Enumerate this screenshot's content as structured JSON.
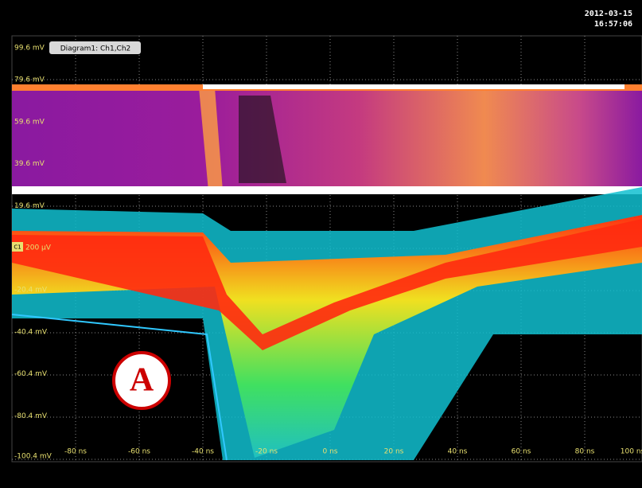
{
  "header": {
    "date": "2012-03-15",
    "time": "16:57:06"
  },
  "diagram": {
    "tab": "Diagram1: Ch1,Ch2",
    "channel": "C1"
  },
  "axis": {
    "y_labels": [
      "99.6 mV",
      "79.6 mV",
      "59.6 mV",
      "39.6 mV",
      "19.6 mV",
      "200 µV",
      "-20.4 mV",
      "-40.4 mV",
      "-60.4 mV",
      "-80.4 mV",
      "-100.4 mV"
    ],
    "x_labels": [
      "-80 ns",
      "-60 ns",
      "-40 ns",
      "-20 ns",
      "0 ns",
      "20 ns",
      "40 ns",
      "60 ns",
      "80 ns",
      "100 ns"
    ]
  },
  "marker": "A"
}
